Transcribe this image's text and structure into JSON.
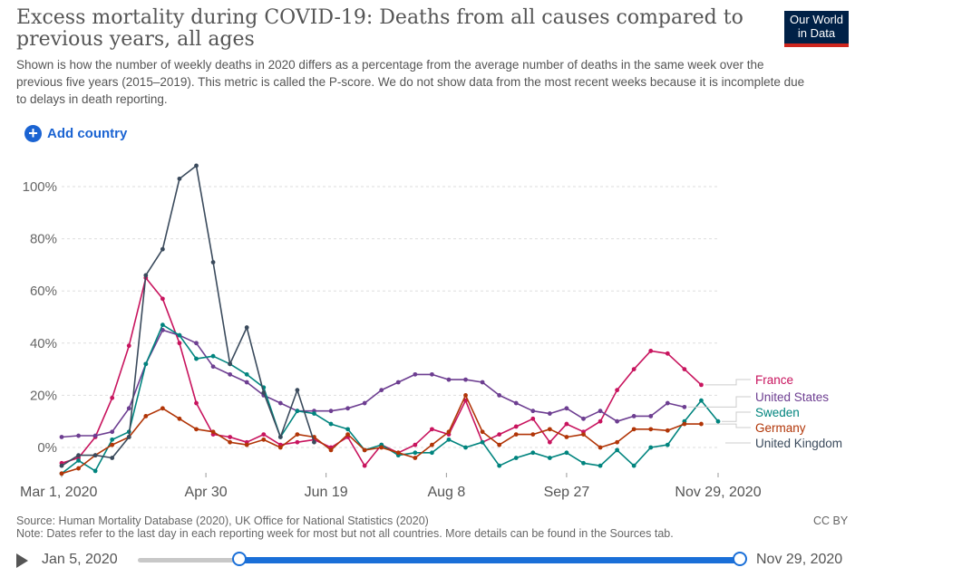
{
  "header": {
    "title": "Excess mortality during COVID-19: Deaths from all causes compared to previous years, all ages",
    "subtitle": "Shown is how the number of weekly deaths in 2020 differs as a percentage from the average number of deaths in the same week over the previous five years (2015–2019). This metric is called the P-score. We do not show data from the most recent weeks because it is incomplete due to delays in death reporting.",
    "logo_line1": "Our World",
    "logo_line2": "in Data"
  },
  "controls": {
    "add_country_label": "Add country",
    "add_icon": "plus-circle-icon"
  },
  "colors": {
    "france": "#c8145e",
    "united_states": "#6d3e91",
    "sweden": "#00847e",
    "germany": "#b13507",
    "united_kingdom": "#3a4a5c",
    "accent": "#1a63d2"
  },
  "chart_data": {
    "type": "line",
    "x_tick_labels": [
      "Mar 1, 2020",
      "Apr 30",
      "Jun 19",
      "Aug 8",
      "Sep 27",
      "Nov 29, 2020"
    ],
    "x_tick_weeks": [
      0,
      8.57,
      15.71,
      22.86,
      30,
      39
    ],
    "y_ticks": [
      0,
      20,
      40,
      60,
      80,
      100
    ],
    "y_tick_labels": [
      "0%",
      "20%",
      "40%",
      "60%",
      "80%",
      "100%"
    ],
    "ylim": [
      -10,
      110
    ],
    "grid": true,
    "legend_position": "right",
    "series": [
      {
        "name": "France",
        "color": "#c8145e",
        "x_start_week": 0,
        "values": [
          -6,
          -4,
          4,
          19,
          39,
          65,
          57,
          40,
          17,
          5,
          4,
          2,
          5,
          1,
          2,
          3,
          0,
          4,
          -7,
          1,
          -2,
          1,
          7,
          5,
          18,
          2,
          5,
          8,
          11,
          2,
          9,
          6,
          10,
          22,
          30,
          37,
          36,
          30,
          24
        ]
      },
      {
        "name": "United States",
        "color": "#6d3e91",
        "x_start_week": 0,
        "values": [
          4,
          4.5,
          4.5,
          6,
          15,
          32,
          45,
          43,
          40,
          31,
          28,
          25,
          20,
          17,
          14,
          14,
          14,
          15,
          17,
          22,
          25,
          28,
          28,
          26,
          26,
          25,
          20,
          17,
          14,
          13,
          15,
          11,
          14,
          10,
          12,
          12,
          17,
          15.5
        ]
      },
      {
        "name": "Sweden",
        "color": "#00847e",
        "x_start_week": 0,
        "values": [
          -10,
          -5,
          -9,
          3,
          6,
          32,
          47,
          43,
          34,
          35,
          32,
          28,
          23,
          4,
          14,
          13,
          9,
          7,
          -1,
          1,
          -3,
          -2,
          -2,
          3,
          0,
          2,
          -7,
          -4,
          -2,
          -4,
          -2,
          -6,
          -7,
          -1,
          -7,
          0,
          1,
          10,
          18,
          10
        ]
      },
      {
        "name": "Germany",
        "color": "#b13507",
        "x_start_week": 0,
        "values": [
          -10,
          -8,
          -3,
          1,
          4,
          12,
          15,
          11,
          7,
          6,
          2,
          1,
          3,
          0,
          5,
          4,
          -1,
          5,
          -1,
          0,
          -2,
          -4,
          1,
          6,
          20,
          6,
          1,
          5,
          5,
          7,
          4,
          5,
          0,
          2,
          7,
          7,
          6.5,
          9,
          9
        ]
      },
      {
        "name": "United Kingdom",
        "color": "#3a4a5c",
        "x_start_week": 0,
        "values": [
          -7,
          -3,
          -3,
          -4,
          4,
          66,
          76,
          103,
          108,
          71,
          32,
          46,
          21,
          4,
          22,
          2,
          null,
          null,
          null,
          null,
          null,
          null,
          null,
          null,
          null,
          null,
          null,
          null,
          null,
          null,
          null,
          null,
          null,
          null,
          null,
          null,
          null,
          null,
          null
        ]
      }
    ]
  },
  "sources": {
    "line1": "Source: Human Mortality Database (2020), UK Office for National Statistics (2020)",
    "line2": "Note: Dates refer to the last day in each reporting week for most but not all countries. More details can be found in the Sources tab.",
    "license": "CC BY"
  },
  "timeline": {
    "start_label": "Jan 5, 2020",
    "end_label": "Nov 29, 2020",
    "play_icon": "play-icon",
    "range_start_fraction": 0.169,
    "range_end_fraction": 1.0
  }
}
